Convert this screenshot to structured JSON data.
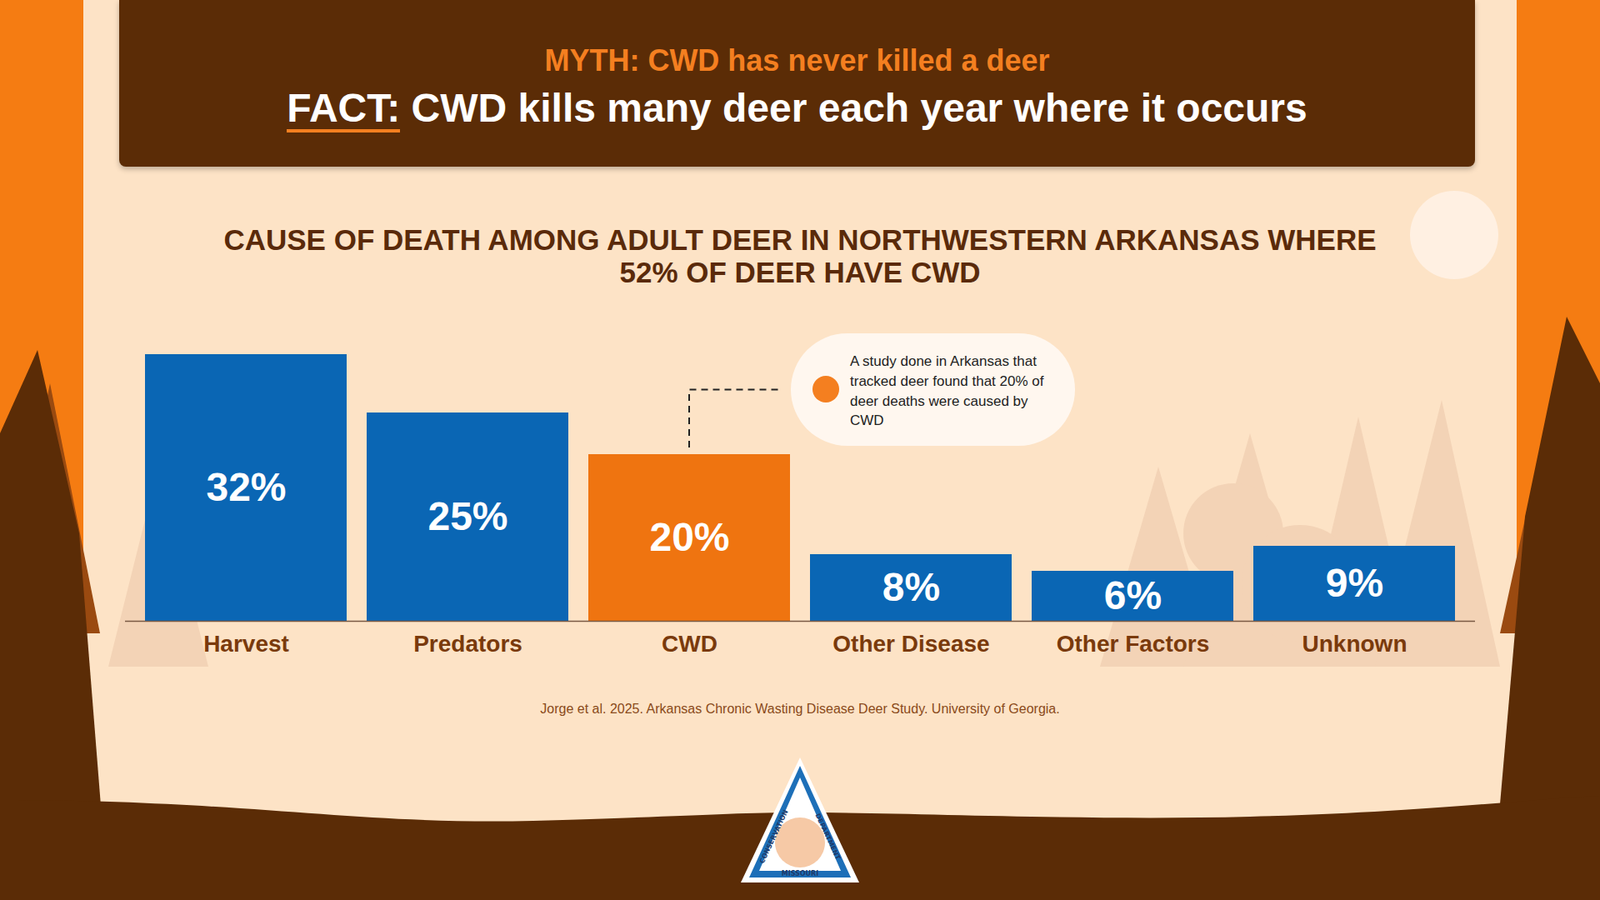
{
  "chart_data": {
    "type": "bar",
    "header": {
      "myth": "MYTH: CWD has never killed a deer",
      "fact_label": "FACT:",
      "fact": "CWD kills many deer each year where it occurs"
    },
    "title": "CAUSE OF DEATH AMONG ADULT DEER IN NORTHWESTERN ARKANSAS WHERE 52% OF DEER HAVE CWD",
    "categories": [
      "Harvest",
      "Predators",
      "CWD",
      "Other Disease",
      "Other Factors",
      "Unknown"
    ],
    "values": [
      32,
      25,
      20,
      8,
      6,
      9
    ],
    "value_labels": [
      "32%",
      "25%",
      "20%",
      "8%",
      "6%",
      "9%"
    ],
    "colors": [
      "#0a66b4",
      "#0a66b4",
      "#ef7410",
      "#0a66b4",
      "#0a66b4",
      "#0a66b4"
    ],
    "ylim": [
      0,
      32
    ],
    "grid": false,
    "data_labels": true,
    "tick_labels": "x",
    "annotation": {
      "category": "CWD",
      "text": "A study done in Arkansas that tracked deer found that 20% of deer deaths were caused by CWD"
    },
    "source": "Jorge et al. 2025. Arkansas Chronic Wasting Disease Deer Study. University of Georgia.",
    "logo": {
      "left": "CONSERVATION",
      "right": "DEPARTMENT",
      "bottom": "MISSOURI"
    }
  }
}
